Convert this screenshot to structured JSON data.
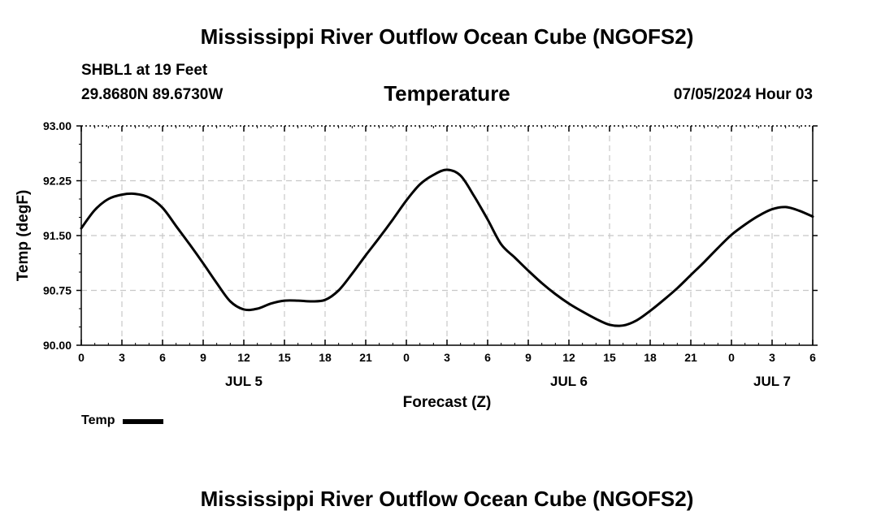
{
  "header": {
    "title": "Mississippi River Outflow Ocean Cube (NGOFS2)",
    "station": "SHBL1 at 19 Feet",
    "coordinates": "29.8680N  89.6730W",
    "parameter": "Temperature",
    "timestamp": "07/05/2024 Hour 03"
  },
  "footer": {
    "title": "Mississippi River Outflow Ocean Cube (NGOFS2)"
  },
  "legend": {
    "label": "Temp",
    "color": "#000000"
  },
  "chart_data": {
    "type": "line",
    "title": "Temperature",
    "xlabel": "Forecast (Z)",
    "ylabel": "Temp (degF)",
    "xlim": [
      0,
      54
    ],
    "ylim": [
      90.0,
      93.0
    ],
    "grid": true,
    "yticks": [
      "90.00",
      "90.75",
      "91.50",
      "92.25",
      "93.00"
    ],
    "ytick_values": [
      90.0,
      90.75,
      91.5,
      92.25,
      93.0
    ],
    "xticks": [
      "0",
      "3",
      "6",
      "9",
      "12",
      "15",
      "18",
      "21",
      "0",
      "3",
      "6",
      "9",
      "12",
      "15",
      "18",
      "21",
      "0",
      "3",
      "6"
    ],
    "date_labels": [
      {
        "label": "JUL 5",
        "hour": 12
      },
      {
        "label": "JUL 6",
        "hour": 36
      },
      {
        "label": "JUL 7",
        "hour": 51
      }
    ],
    "series": [
      {
        "name": "Temp",
        "x": [
          0,
          1,
          2,
          3,
          4,
          5,
          6,
          7,
          8,
          9,
          10,
          11,
          12,
          13,
          14,
          15,
          16,
          17,
          18,
          19,
          20,
          21,
          22,
          23,
          24,
          25,
          26,
          27,
          28,
          29,
          30,
          31,
          32,
          33,
          34,
          35,
          36,
          37,
          38,
          39,
          40,
          41,
          42,
          43,
          44,
          45,
          46,
          47,
          48,
          49,
          50,
          51,
          52,
          53,
          54
        ],
        "values": [
          91.6,
          91.85,
          92.0,
          92.06,
          92.07,
          92.02,
          91.88,
          91.63,
          91.38,
          91.12,
          90.85,
          90.6,
          90.49,
          90.5,
          90.57,
          90.61,
          90.61,
          90.6,
          90.62,
          90.75,
          90.98,
          91.23,
          91.47,
          91.72,
          91.98,
          92.2,
          92.33,
          92.4,
          92.32,
          92.04,
          91.72,
          91.38,
          91.2,
          91.02,
          90.85,
          90.7,
          90.57,
          90.46,
          90.36,
          90.28,
          90.27,
          90.34,
          90.47,
          90.62,
          90.78,
          90.96,
          91.14,
          91.33,
          91.51,
          91.65,
          91.77,
          91.86,
          91.89,
          91.84,
          91.76
        ]
      }
    ]
  }
}
